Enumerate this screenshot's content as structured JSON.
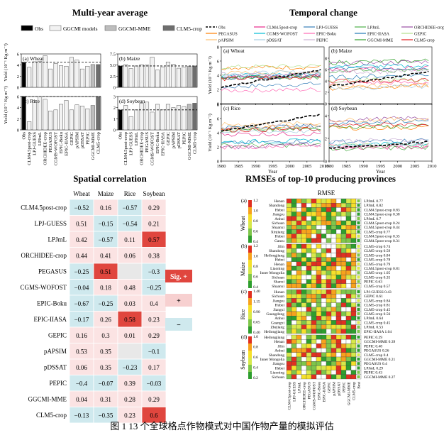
{
  "figure_caption": "图 1    13 个全球格点作物模式对中国作物产量的模拟评估",
  "panels": {
    "multi_year_title": "Multi-year average",
    "temporal_title": "Temporal change",
    "spatial_title": "Spatial correlation",
    "rmse_title": "RMSEs of top-10 producing provinces"
  },
  "chart_data": [
    {
      "id": "multi_year_average",
      "type": "bar",
      "title": "Multi-year average",
      "ylabel": "Yield (10⁻¹ Kg m⁻²)",
      "legend": [
        "Obs",
        "GGCMI models",
        "GGCMI-MME",
        "CLM5-crop"
      ],
      "categories": [
        "Obs",
        "CLM4.5post-crop",
        "LPJ-GUESS",
        "LPJmL",
        "ORCHIDEE-crop",
        "PEGASUS",
        "CGMS-WOFOST",
        "EPIC-Boku",
        "EPIC-IIASA",
        "GEPIC",
        "pAPSIM",
        "pDSSAT",
        "PEPIC",
        "GGCMI-MME",
        "CLM5-crop"
      ],
      "colors": {
        "obs": "#000000",
        "model": "#f2f2f2",
        "mme": "#bdbdbd",
        "clm5": "#6e6e6e",
        "edge": "#555555"
      },
      "subplots": [
        {
          "label": "(a) Wheat",
          "ylim": [
            0,
            6
          ],
          "yticks": [
            "0",
            "2",
            "4",
            "6"
          ],
          "ref": 4.5,
          "values": [
            4.5,
            3.6,
            4.6,
            4.7,
            5.7,
            3.3,
            4.3,
            3.9,
            3.8,
            5.4,
            4.9,
            3.3,
            3.8,
            4.1,
            4.1
          ]
        },
        {
          "label": "(b) Maize",
          "ylim": [
            0,
            7.5
          ],
          "yticks": [
            "0",
            "2.5",
            "5.0",
            "7.5"
          ],
          "ref": 4.8,
          "values": [
            4.8,
            5.1,
            4.2,
            4.8,
            5.1,
            5.0,
            6.8,
            3.9,
            4.6,
            5.7,
            5.2,
            4.3,
            4.5,
            4.7,
            4.8
          ]
        },
        {
          "label": "(c) Rice",
          "ylim": [
            0,
            6
          ],
          "yticks": [
            "0",
            "2",
            "4",
            "6"
          ],
          "ref": 6,
          "values": [
            6.2,
            1.5,
            5.3,
            6.6,
            5.5,
            3.4,
            3.6,
            4.6,
            5.3,
            3.6,
            4.5,
            4.3,
            3.8,
            4.4,
            6.3
          ]
        },
        {
          "label": "(d) Soybean",
          "ylim": [
            0,
            3
          ],
          "yticks": [
            "0",
            "1",
            "2",
            "3"
          ],
          "ref": 1.8,
          "values": [
            1.8,
            2.2,
            1.2,
            1.8,
            2.4,
            2.5,
            1.6,
            2.3,
            1.8,
            2.3,
            2.0,
            2.2,
            2.1,
            2.3,
            2.4
          ]
        }
      ]
    },
    {
      "id": "temporal_change",
      "type": "line",
      "title": "Temporal change",
      "ylabel": "Yield (10⁻¹ Kg m⁻²)",
      "xlabel": "Year",
      "xlim": [
        1980,
        2010
      ],
      "xticks": [
        "1980",
        "1985",
        "1990",
        "1995",
        "2000",
        "2005",
        "2010"
      ],
      "legend": [
        {
          "name": "Obs",
          "color": "#000000",
          "dash": true
        },
        {
          "name": "CLM4.5post-crop",
          "color": "#e7298a"
        },
        {
          "name": "LPJ-GUESS",
          "color": "#377eb8"
        },
        {
          "name": "LPJmL",
          "color": "#4daf4a"
        },
        {
          "name": "ORCHIDEE-crop",
          "color": "#984ea3"
        },
        {
          "name": "PEGASUS",
          "color": "#ff7f00"
        },
        {
          "name": "CGMS-WOFOST",
          "color": "#00bcd4"
        },
        {
          "name": "EPIC-Boku",
          "color": "#ff69b4"
        },
        {
          "name": "EPIC-IIASA",
          "color": "#1f78b4"
        },
        {
          "name": "GEPIC",
          "color": "#b2df8a"
        },
        {
          "name": "pAPSIM",
          "color": "#fdbf6f"
        },
        {
          "name": "pDSSAT",
          "color": "#a6cee3"
        },
        {
          "name": "PEPIC",
          "color": "#cab2d6"
        },
        {
          "name": "GGCMI-MME",
          "color": "#33a02c"
        },
        {
          "name": "CLM5-crop",
          "color": "#e31a1c"
        }
      ],
      "subplots": [
        {
          "label": "(a) Wheat",
          "ylim": [
            0,
            8
          ],
          "yticks": [
            "0",
            "2",
            "4",
            "6",
            "8"
          ],
          "obs_start": 2.3,
          "obs_end": 4.8
        },
        {
          "label": "(b) Maize",
          "ylim": [
            0,
            10
          ],
          "yticks": [
            "0",
            "2",
            "4",
            "6",
            "8"
          ],
          "obs_start": 3.0,
          "obs_end": 5.6
        },
        {
          "label": "(c) Rice",
          "ylim": [
            0,
            8
          ],
          "yticks": [
            "0",
            "2",
            "4",
            "6",
            "8"
          ],
          "obs_start": 4.2,
          "obs_end": 6.6
        },
        {
          "label": "(d) Soybean",
          "ylim": [
            0,
            5
          ],
          "yticks": [
            "0",
            "2",
            "4"
          ],
          "obs_start": 1.1,
          "obs_end": 1.7
        }
      ]
    },
    {
      "id": "spatial_correlation",
      "type": "table",
      "title": "Spatial correlation",
      "columns": [
        "Wheat",
        "Maize",
        "Rice",
        "Soybean"
      ],
      "rows": [
        {
          "name": "CLM4.5post-crop",
          "values": [
            "−0.52",
            "0.16",
            "−0.57",
            "0.29"
          ],
          "cls": [
            "neg",
            "none",
            "neg",
            "none"
          ]
        },
        {
          "name": "LPJ-GUESS",
          "values": [
            "0.51",
            "−0.15",
            "−0.54",
            "0.21"
          ],
          "cls": [
            "none",
            "neg",
            "neg",
            "none"
          ]
        },
        {
          "name": "LPJmL",
          "values": [
            "0.42",
            "−0.57",
            "0.11",
            "0.57"
          ],
          "cls": [
            "none",
            "neg",
            "none",
            "sig"
          ]
        },
        {
          "name": "ORCHIDEE-crop",
          "values": [
            "0.44",
            "0.41",
            "0.06",
            "0.38"
          ],
          "cls": [
            "none",
            "none",
            "none",
            "none"
          ]
        },
        {
          "name": "PEGASUS",
          "values": [
            "−0.25",
            "0.51",
            "",
            "−0.3"
          ],
          "cls": [
            "neg",
            "sig",
            "blank",
            "neg"
          ]
        },
        {
          "name": "CGMS-WOFOST",
          "values": [
            "−0.04",
            "0.18",
            "0.48",
            "−0.25"
          ],
          "cls": [
            "neg",
            "none",
            "none",
            "neg"
          ]
        },
        {
          "name": "EPIC-Boku",
          "values": [
            "−0.67",
            "−0.25",
            "0.03",
            "0.4"
          ],
          "cls": [
            "neg",
            "neg",
            "none",
            "none"
          ]
        },
        {
          "name": "EPIC-IIASA",
          "values": [
            "−0.17",
            "0.26",
            "0.58",
            "0.23"
          ],
          "cls": [
            "neg",
            "none",
            "sig",
            "none"
          ]
        },
        {
          "name": "GEPIC",
          "values": [
            "0.16",
            "0.3",
            "0.01",
            "0.29"
          ],
          "cls": [
            "none",
            "none",
            "none",
            "none"
          ]
        },
        {
          "name": "pAPSIM",
          "values": [
            "0.53",
            "0.35",
            "",
            "−0.1"
          ],
          "cls": [
            "none",
            "none",
            "blank",
            "neg"
          ]
        },
        {
          "name": "pDSSAT",
          "values": [
            "0.06",
            "0.35",
            "−0.23",
            "0.17"
          ],
          "cls": [
            "none",
            "none",
            "neg",
            "none"
          ]
        },
        {
          "name": "PEPIC",
          "values": [
            "−0.4",
            "−0.07",
            "0.39",
            "−0.03"
          ],
          "cls": [
            "neg",
            "neg",
            "none",
            "neg"
          ]
        },
        {
          "name": "GGCMI-MME",
          "values": [
            "0.04",
            "0.31",
            "0.28",
            "0.29"
          ],
          "cls": [
            "none",
            "none",
            "none",
            "none"
          ]
        },
        {
          "name": "CLM5-crop",
          "values": [
            "−0.13",
            "−0.35",
            "0.23",
            "0.6"
          ],
          "cls": [
            "neg",
            "neg",
            "none",
            "sig"
          ]
        }
      ],
      "legend": {
        "sig": "Sig. +",
        "pos": "+",
        "neg": "−"
      },
      "colors": {
        "sig": "#e0463e",
        "pos": "#f7d0d0",
        "neg": "#cfe9ee",
        "none": "#fbe3e3",
        "blank": "#e8e8e8"
      }
    },
    {
      "id": "rmse_top10",
      "type": "heatmap",
      "title": "RMSEs of top-10 producing provinces",
      "header": "RMSE",
      "models": [
        "CLM4.5post-crop",
        "LPJ-GUESS",
        "LPJmL",
        "ORCHIDEE-crop",
        "PEGASUS",
        "CGMS-WOFOST",
        "EPIC-Boku",
        "EPIC-IIASA",
        "GEPIC",
        "pAPSIM",
        "pDSSAT",
        "PEPIC",
        "GGCMI-MME",
        "CLM5-crop",
        "Best"
      ],
      "subplots": [
        {
          "label": "(a)",
          "crop": "Wheat",
          "cbar": [
            "0.4",
            "0.6",
            "0.8",
            "1.0",
            "1.2"
          ],
          "provinces": [
            "Henan",
            "Shandong",
            "Hebei",
            "Jiangsu",
            "Anhui",
            "Sichuan",
            "Shaanxi",
            "Xinjiang",
            "Hubei",
            "Gansu"
          ],
          "best": [
            "LPJmL 0.77",
            "LPJmL 0.82",
            "CLM4.5post-crop 0.83",
            "CLM4.5post-crop 0.38",
            "LPJmL 0.7",
            "CLM4.5post-crop 0.24",
            "CLM4.5post-crop 0.44",
            "CLM5-crop 0.77",
            "CLM4.5post-crop 0.35",
            "CLM4.5post-crop 0.31"
          ]
        },
        {
          "label": "(b)",
          "crop": "Maize",
          "cbar": [
            "0.4",
            "0.6",
            "0.8",
            "1.0",
            "1.2"
          ],
          "provinces": [
            "Jilin",
            "Shandong",
            "Heilongjiang",
            "Hebei",
            "Henan",
            "Liaoning",
            "Inner Mongolia",
            "Sichuan",
            "Shanxi",
            "Shaanxi"
          ],
          "best": [
            "CLM5-crop 0.74",
            "CLM5-crop 0.59",
            "CLM5-crop 0.84",
            "CLM5-crop 0.78",
            "CLM5-crop 0.79",
            "CLM4.5post-crop 0.81",
            "CLM5-crop 1.05",
            "CLM5-crop 0.35",
            "PEPIC 0.63",
            "CLM5-crop 0.57"
          ]
        },
        {
          "label": "(c)",
          "crop": "Rice",
          "cbar": [
            "0.40",
            "0.65",
            "0.90",
            "1.15",
            "1.40"
          ],
          "provinces": [
            "Hunan",
            "Sichuan",
            "Jiangsu",
            "Hubei",
            "Jiangxi",
            "Guangdong",
            "Anhui",
            "Guangxi",
            "Zhejiang",
            "Heilongjiang"
          ],
          "best": [
            "LPJ-GUESS 0.43",
            "GEPIC 0.61",
            "CLM5-crop 0.84",
            "CLM5-crop 0.81",
            "CLM5-crop 0.45",
            "CLM5-crop 0.56",
            "LPJmL 0.64",
            "CLM5-crop 0.45",
            "LPJmL 0.53",
            "EPIC-IIASA 1.04"
          ]
        },
        {
          "label": "(d)",
          "crop": "Soybean",
          "cbar": [
            "0.2",
            "0.4",
            "0.6",
            "0.8",
            "1.0"
          ],
          "provinces": [
            "Heilongjiang",
            "Henan",
            "Jilin",
            "Anhui",
            "Shandong",
            "Inner Mongolia",
            "Jiangsu",
            "Hebei",
            "Liaoning",
            "Sichuan"
          ],
          "best": [
            "PEPIC 0.29",
            "GGCMI-MME 0.39",
            "PEPIC 0.48",
            "PEGASUS 0.26",
            "CLM5-crop 0.4",
            "GGCMI-MME 0.21",
            "PEGASUS 0.4",
            "LPJmL 0.29",
            "PEPIC 0.43",
            "GGCMI-MME 0.27"
          ]
        }
      ]
    }
  ]
}
